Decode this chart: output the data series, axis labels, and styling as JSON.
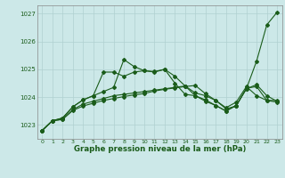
{
  "title": "Graphe pression niveau de la mer (hPa)",
  "xlim": [
    -0.5,
    23.5
  ],
  "ylim": [
    1022.5,
    1027.3
  ],
  "yticks": [
    1023,
    1024,
    1025,
    1026,
    1027
  ],
  "xticks": [
    0,
    1,
    2,
    3,
    4,
    5,
    6,
    7,
    8,
    9,
    10,
    11,
    12,
    13,
    14,
    15,
    16,
    17,
    18,
    19,
    20,
    21,
    22,
    23
  ],
  "bg_color": "#cce8e8",
  "grid_color": "#b0d0d0",
  "line_color": "#1a5c1a",
  "line1_x": [
    0,
    1,
    2,
    3,
    4,
    5,
    6,
    7,
    8,
    9,
    10,
    11,
    12,
    13,
    14,
    15,
    16,
    17,
    18,
    19,
    20,
    21,
    22,
    23
  ],
  "line1_y": [
    1022.8,
    1023.15,
    1023.25,
    1023.65,
    1023.9,
    1024.05,
    1024.2,
    1024.35,
    1025.35,
    1025.1,
    1024.95,
    1024.9,
    1025.0,
    1024.5,
    1024.1,
    1024.05,
    1023.85,
    1023.7,
    1023.5,
    1023.7,
    1024.3,
    1025.3,
    1026.6,
    1027.05
  ],
  "line2_x": [
    0,
    1,
    2,
    3,
    4,
    5,
    6,
    7,
    8,
    9,
    10,
    11,
    12,
    13,
    14,
    15,
    16,
    17,
    18,
    19,
    20,
    21,
    22,
    23
  ],
  "line2_y": [
    1022.8,
    1023.15,
    1023.25,
    1023.65,
    1023.9,
    1024.05,
    1024.9,
    1024.9,
    1024.75,
    1024.9,
    1024.95,
    1024.92,
    1025.0,
    1024.75,
    1024.4,
    1024.05,
    1023.9,
    1023.7,
    1023.5,
    1023.7,
    1024.3,
    1024.45,
    1024.05,
    1023.85
  ],
  "line3_x": [
    0,
    1,
    2,
    3,
    4,
    5,
    6,
    7,
    8,
    9,
    10,
    11,
    12,
    13,
    14,
    15,
    16,
    17,
    18,
    19,
    20,
    21,
    22,
    23
  ],
  "line3_y": [
    1022.8,
    1023.15,
    1023.2,
    1023.55,
    1023.75,
    1023.85,
    1023.95,
    1024.05,
    1024.1,
    1024.15,
    1024.2,
    1024.25,
    1024.3,
    1024.35,
    1024.4,
    1024.15,
    1024.05,
    1023.88,
    1023.58,
    1023.68,
    1024.32,
    1024.38,
    1023.88,
    1023.82
  ],
  "line4_x": [
    0,
    1,
    2,
    3,
    4,
    5,
    6,
    7,
    8,
    9,
    10,
    11,
    12,
    13,
    14,
    15,
    16,
    17,
    18,
    19,
    20,
    21,
    22,
    23
  ],
  "line4_y": [
    1022.8,
    1023.15,
    1023.2,
    1023.52,
    1023.68,
    1023.78,
    1023.88,
    1023.95,
    1024.02,
    1024.08,
    1024.13,
    1024.22,
    1024.28,
    1024.33,
    1024.38,
    1024.42,
    1024.12,
    1023.88,
    1023.62,
    1023.82,
    1024.38,
    1024.05,
    1023.88,
    1023.88
  ]
}
